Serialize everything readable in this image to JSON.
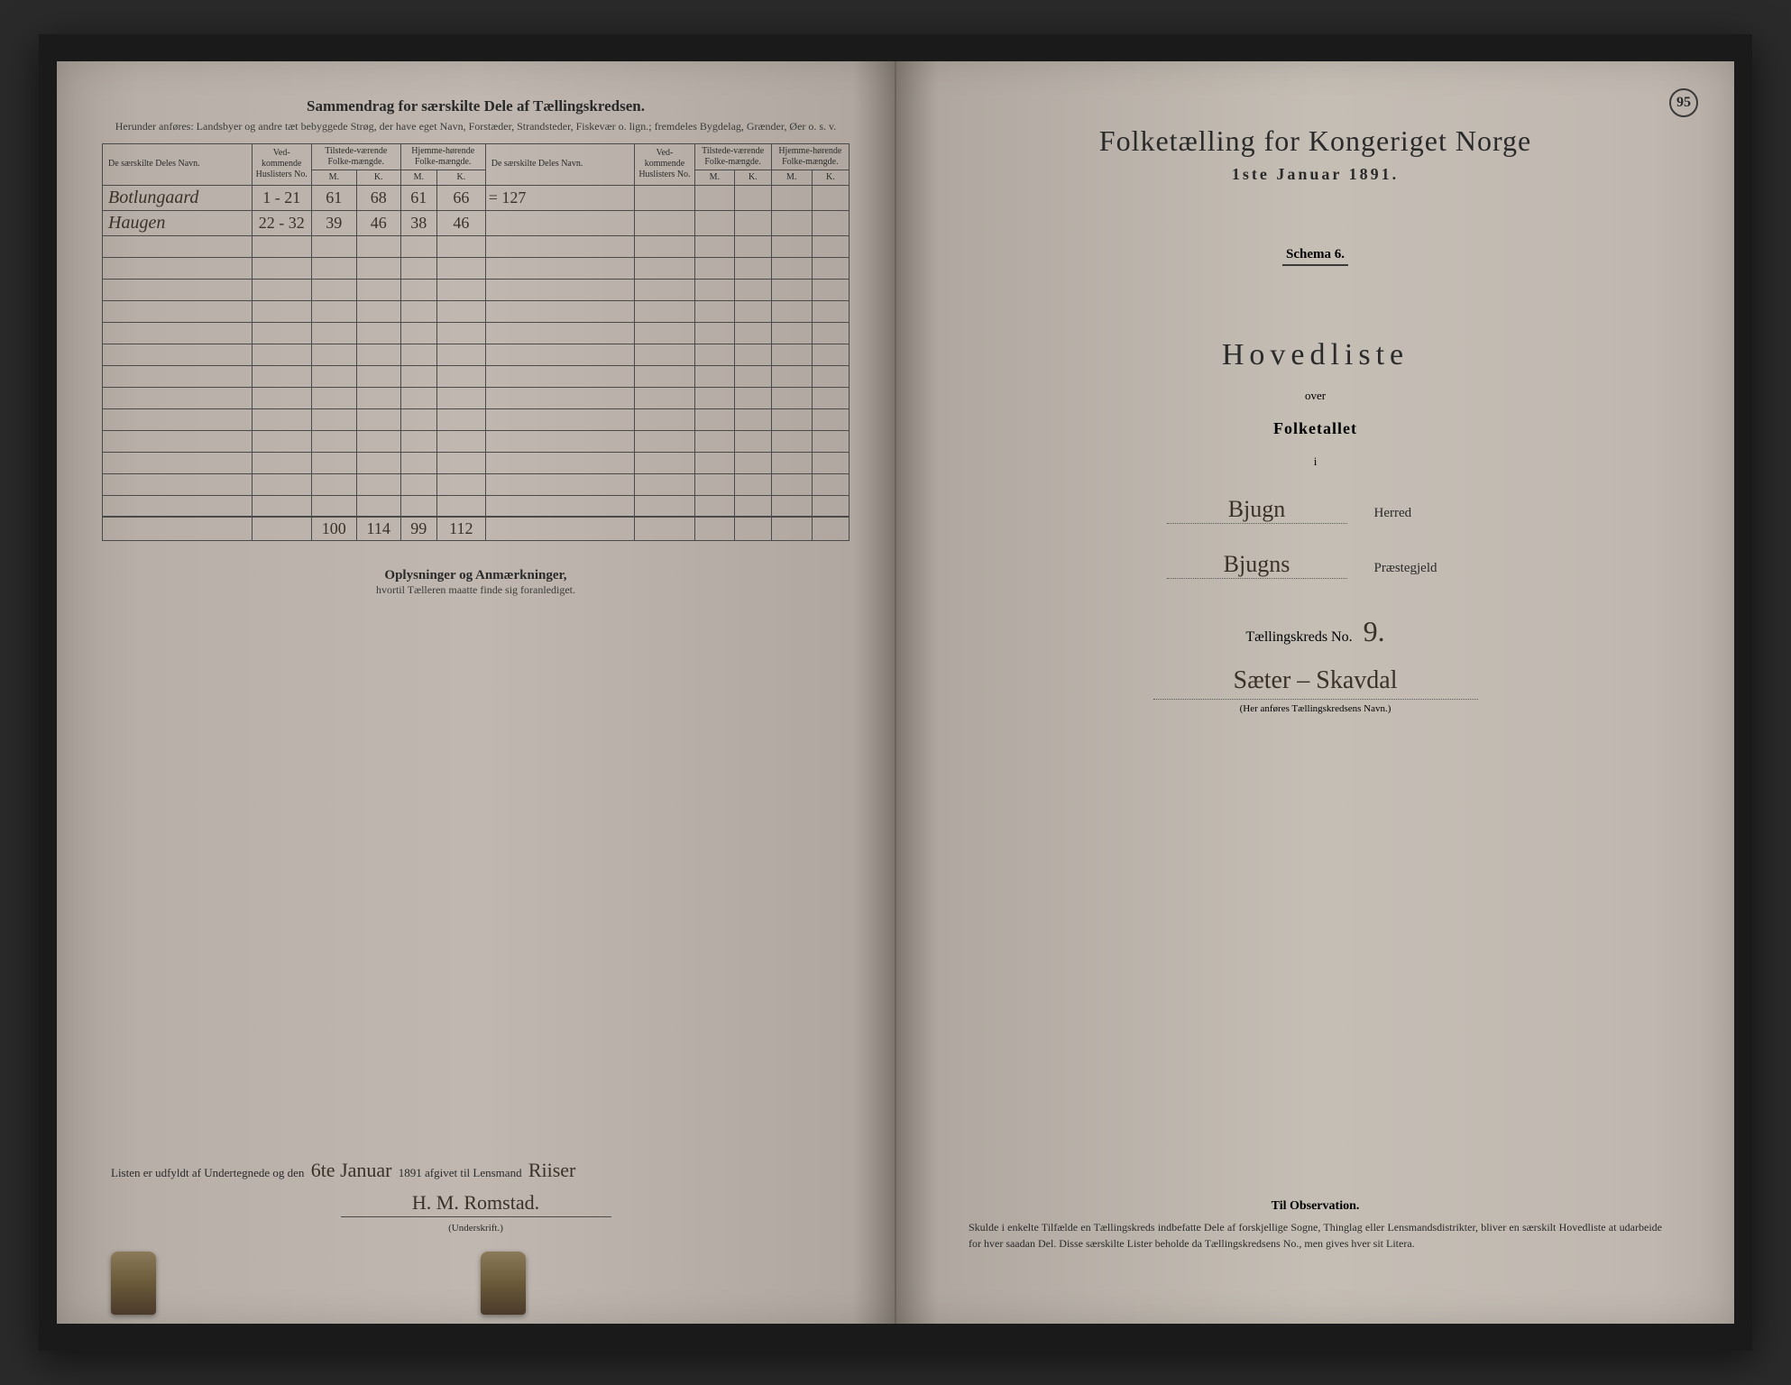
{
  "left": {
    "header_title": "Sammendrag for særskilte Dele af Tællingskredsen.",
    "header_subtitle": "Herunder anføres: Landsbyer og andre tæt bebyggede Strøg, der have eget Navn, Forstæder, Strandsteder, Fiskevær o. lign.; fremdeles Bygdelag, Grænder, Øer o. s. v.",
    "table": {
      "columns": {
        "name": "De særskilte Deles Navn.",
        "huslister": "Ved-kommende Huslisters No.",
        "tilstede": "Tilstede-værende Folke-mængde.",
        "hjemme": "Hjemme-hørende Folke-mængde.",
        "mk_m": "M.",
        "mk_k": "K."
      },
      "rows": [
        {
          "name": "Botlungaard",
          "huslister": "1 - 21",
          "tm": "61",
          "tk": "68",
          "hm": "61",
          "hk": "66",
          "note": "= 127"
        },
        {
          "name": "Haugen",
          "huslister": "22 - 32",
          "tm": "39",
          "tk": "46",
          "hm": "38",
          "hk": "46",
          "note": ""
        }
      ],
      "totals": {
        "tm": "100",
        "tk": "114",
        "hm": "99",
        "hk": "112"
      }
    },
    "oplysninger_title": "Oplysninger og Anmærkninger,",
    "oplysninger_sub": "hvortil Tælleren maatte finde sig foranlediget.",
    "signature_prefix": "Listen er udfyldt af Undertegnede og den",
    "signature_date": "6te Januar",
    "signature_year": "1891 afgivet til Lensmand",
    "signature_lensmand": "Riiser",
    "signature_name": "H. M. Romstad.",
    "underskrift_label": "(Underskrift.)"
  },
  "right": {
    "page_number": "95",
    "main_title": "Folketælling for Kongeriget Norge",
    "main_date": "1ste Januar 1891.",
    "schema": "Schema 6.",
    "hovedliste": "Hovedliste",
    "over": "over",
    "folketallet": "Folketallet",
    "ii": "i",
    "herred_value": "Bjugn",
    "herred_label": "Herred",
    "praestegjeld_value": "Bjugns",
    "praestegjeld_label": "Præstegjeld",
    "tkreds_label": "Tællingskreds No.",
    "tkreds_no": "9.",
    "kreds_name": "Sæter – Skavdal",
    "kreds_hint": "(Her anføres Tællingskredsens Navn.)",
    "obs_title": "Til Observation.",
    "obs_text": "Skulde i enkelte Tilfælde en Tællingskreds indbefatte Dele af forskjellige Sogne, Thinglag eller Lensmandsdistrikter, bliver en særskilt Hovedliste at udarbeide for hver saadan Del. Disse særskilte Lister beholde da Tællingskredsens No., men gives hver sit Litera."
  },
  "colors": {
    "paper": "#c0b8b0",
    "ink": "#2a2a2a",
    "hand_ink": "#3a3228",
    "border": "#4a4a4a"
  }
}
